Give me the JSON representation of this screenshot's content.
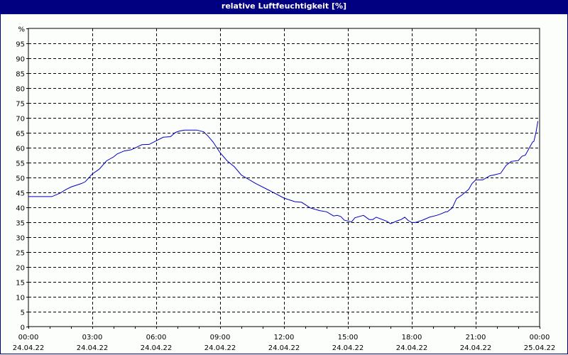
{
  "window": {
    "title": "relative Luftfeuchtigkeit [%]",
    "title_bar_color": "#000080",
    "background": "#fcfefc"
  },
  "chart_data": {
    "type": "line",
    "title": "relative Luftfeuchtigkeit [%]",
    "xlabel": "",
    "ylabel": "%",
    "ylim": [
      0,
      100
    ],
    "xlim": [
      "24.04.22 00:00",
      "25.04.22 00:00"
    ],
    "grid": true,
    "line_color": "#0000c0",
    "y_ticks": [
      "0",
      "5",
      "10",
      "15",
      "20",
      "25",
      "30",
      "35",
      "40",
      "45",
      "50",
      "55",
      "60",
      "65",
      "70",
      "75",
      "80",
      "85",
      "90",
      "95",
      "%"
    ],
    "x_ticks": [
      {
        "time": "00:00",
        "date": "24.04.22"
      },
      {
        "time": "03:00",
        "date": "24.04.22"
      },
      {
        "time": "06:00",
        "date": "24.04.22"
      },
      {
        "time": "09:00",
        "date": "24.04.22"
      },
      {
        "time": "12:00",
        "date": "24.04.22"
      },
      {
        "time": "15:00",
        "date": "24.04.22"
      },
      {
        "time": "18:00",
        "date": "24.04.22"
      },
      {
        "time": "21:00",
        "date": "24.04.22"
      },
      {
        "time": "00:00",
        "date": "25.04.22"
      }
    ],
    "series": [
      {
        "name": "relative Luftfeuchtigkeit",
        "x_hours": [
          0,
          1.1,
          1.5,
          1.77,
          2.0,
          2.5,
          2.67,
          3.0,
          3.33,
          3.67,
          4.0,
          4.17,
          4.5,
          4.83,
          5.33,
          5.67,
          6.0,
          6.33,
          6.67,
          6.9,
          7.1,
          7.33,
          7.9,
          8.23,
          8.43,
          8.67,
          9.0,
          9.33,
          9.67,
          10.0,
          10.33,
          10.67,
          11.33,
          12.0,
          12.5,
          12.83,
          13.23,
          13.67,
          14.0,
          14.33,
          14.5,
          14.67,
          14.83,
          15.17,
          15.33,
          15.73,
          16.0,
          16.17,
          16.33,
          16.83,
          17.0,
          17.33,
          17.5,
          17.67,
          17.83,
          18.0,
          18.17,
          18.5,
          18.83,
          19.17,
          19.33,
          19.6,
          19.67,
          19.9,
          20.1,
          20.33,
          20.67,
          20.83,
          21.0,
          21.33,
          21.67,
          21.83,
          22.17,
          22.43,
          22.67,
          23.0,
          23.17,
          23.33,
          23.5,
          23.67,
          23.73,
          23.83
        ],
        "values": [
          43.6,
          43.6,
          44.8,
          46.0,
          46.8,
          48.0,
          48.6,
          51.2,
          52.8,
          55.6,
          56.9,
          57.9,
          58.9,
          59.3,
          61.0,
          61.1,
          62.3,
          63.5,
          63.7,
          65.1,
          65.6,
          65.9,
          65.9,
          65.3,
          63.9,
          61.9,
          58.3,
          55.6,
          53.6,
          50.8,
          49.4,
          48.0,
          45.6,
          43.1,
          41.9,
          41.7,
          39.8,
          38.9,
          38.5,
          37.1,
          37.3,
          36.9,
          35.7,
          35.1,
          36.5,
          37.3,
          35.9,
          35.9,
          36.7,
          35.3,
          34.5,
          35.5,
          35.9,
          36.7,
          35.6,
          34.9,
          34.9,
          35.7,
          36.7,
          37.3,
          37.7,
          38.5,
          38.5,
          39.8,
          42.9,
          44.0,
          46.0,
          48.0,
          49.2,
          49.2,
          50.6,
          50.8,
          51.4,
          54.1,
          55.4,
          55.7,
          57.1,
          57.5,
          59.7,
          61.9,
          62.1,
          65.1
        ]
      }
    ],
    "last_point": {
      "x_hours": 23.92,
      "value": 68.9
    }
  }
}
